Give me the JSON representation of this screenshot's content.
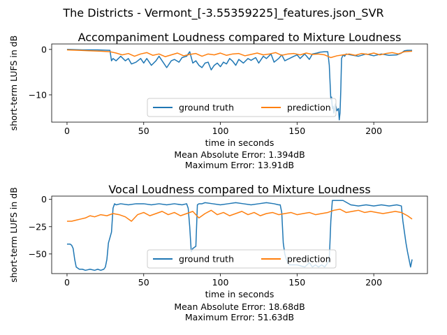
{
  "figure": {
    "suptitle": "The Districts - Vermont_[-3.55359225]_features.json_SVR"
  },
  "chart_data": [
    {
      "type": "line",
      "title": "Accompaniment Loudness compared to Mixture Loudness",
      "xlabel": "time in seconds",
      "ylabel": "short-term LUFS in dB",
      "xlim": [
        -10,
        235
      ],
      "ylim": [
        -16,
        1.2
      ],
      "xticks": [
        0,
        50,
        100,
        150,
        200
      ],
      "yticks": [
        0,
        -10
      ],
      "grid": false,
      "legend": {
        "placement": "lower center",
        "ncol": 2
      },
      "stats": [
        "Mean Absolute Error: 1.394dB",
        "Maximum Error: 13.91dB"
      ],
      "series": [
        {
          "name": "ground truth",
          "color": "#1f77b4",
          "x": [
            0,
            10,
            20,
            28,
            29,
            30,
            32,
            35,
            38,
            40,
            42,
            45,
            48,
            50,
            52,
            55,
            58,
            60,
            63,
            65,
            68,
            70,
            73,
            75,
            78,
            80,
            82,
            84,
            86,
            88,
            90,
            92,
            94,
            96,
            98,
            100,
            102,
            104,
            106,
            108,
            110,
            112,
            115,
            118,
            120,
            123,
            125,
            128,
            130,
            133,
            135,
            138,
            140,
            142,
            145,
            148,
            150,
            152,
            155,
            158,
            160,
            163,
            165,
            168,
            170,
            171,
            172,
            172.5,
            173,
            173.5,
            174,
            175,
            176,
            177,
            177.5,
            178,
            178.5,
            179,
            180,
            181,
            182,
            185,
            190,
            195,
            200,
            205,
            210,
            215,
            218,
            220,
            222,
            225
          ],
          "y": [
            0,
            -0.1,
            -0.1,
            -0.2,
            -2.5,
            -2.0,
            -2.5,
            -1.5,
            -2.5,
            -2.0,
            -3.2,
            -2.8,
            -2.0,
            -3.0,
            -2.0,
            -3.5,
            -2.5,
            -1.5,
            -3.0,
            -4.0,
            -2.5,
            -2.2,
            -2.8,
            -1.8,
            -1.5,
            -0.5,
            -3.0,
            -2.5,
            -3.5,
            -4.0,
            -3.0,
            -2.8,
            -4.5,
            -3.5,
            -3.0,
            -3.8,
            -2.8,
            -3.2,
            -2.0,
            -2.6,
            -3.5,
            -2.2,
            -3.0,
            -2.0,
            -2.4,
            -1.8,
            -3.0,
            -1.5,
            -2.0,
            -1.0,
            -2.8,
            -2.0,
            -1.2,
            -2.5,
            -2.0,
            -1.5,
            -1.2,
            -2.0,
            -1.0,
            -2.2,
            -1.0,
            -0.8,
            -0.6,
            -0.5,
            -0.5,
            -3.5,
            -11.0,
            -10.5,
            -13.0,
            -12.5,
            -14.0,
            -12.0,
            -13.5,
            -13.0,
            -15.5,
            -14.0,
            -9.0,
            -2.0,
            -1.2,
            -1.5,
            -1.0,
            -1.2,
            -1.5,
            -1.0,
            -1.4,
            -1.0,
            -1.3,
            -1.2,
            -0.8,
            -0.3,
            -0.2,
            -0.2
          ]
        },
        {
          "name": "prediction",
          "color": "#ff7f0e",
          "x": [
            0,
            8,
            15,
            22,
            28,
            32,
            36,
            40,
            44,
            48,
            52,
            56,
            60,
            64,
            68,
            72,
            76,
            80,
            84,
            88,
            92,
            96,
            100,
            104,
            108,
            112,
            116,
            120,
            124,
            128,
            132,
            136,
            140,
            144,
            148,
            152,
            156,
            160,
            164,
            168,
            172,
            176,
            180,
            184,
            188,
            192,
            196,
            200,
            204,
            208,
            212,
            216,
            220,
            225
          ],
          "y": [
            -0.1,
            -0.2,
            -0.3,
            -0.4,
            -0.5,
            -0.8,
            -1.2,
            -0.9,
            -1.5,
            -1.0,
            -0.7,
            -1.3,
            -1.0,
            -1.6,
            -1.2,
            -0.8,
            -1.4,
            -1.1,
            -0.9,
            -1.5,
            -1.0,
            -1.2,
            -0.8,
            -1.3,
            -1.0,
            -0.9,
            -1.4,
            -1.1,
            -0.8,
            -1.2,
            -1.0,
            -0.7,
            -1.3,
            -1.0,
            -0.9,
            -1.2,
            -0.8,
            -1.1,
            -1.0,
            -1.2,
            -1.8,
            -1.4,
            -1.2,
            -1.0,
            -1.3,
            -0.9,
            -1.1,
            -0.8,
            -1.2,
            -0.9,
            -0.7,
            -1.0,
            -0.5,
            -0.4
          ]
        }
      ]
    },
    {
      "type": "line",
      "title": "Vocal Loudness compared to Mixture Loudness",
      "xlabel": "time in seconds",
      "ylabel": "short-term LUFS in dB",
      "xlim": [
        -10,
        235
      ],
      "ylim": [
        -68,
        3
      ],
      "xticks": [
        0,
        50,
        100,
        150,
        200
      ],
      "yticks": [
        0,
        -25,
        -50
      ],
      "grid": false,
      "legend": {
        "placement": "lower center",
        "ncol": 2
      },
      "stats": [
        "Mean Absolute Error: 18.68dB",
        "Maximum Error: 51.63dB"
      ],
      "series": [
        {
          "name": "ground truth",
          "color": "#1f77b4",
          "x": [
            0,
            2,
            3,
            4,
            5,
            6,
            8,
            10,
            12,
            15,
            18,
            20,
            22,
            24,
            25,
            26,
            27,
            28,
            29,
            30,
            31,
            32,
            35,
            40,
            45,
            50,
            55,
            60,
            65,
            70,
            75,
            78,
            79,
            80,
            81,
            82,
            83,
            84,
            85,
            86,
            87,
            88,
            90,
            95,
            100,
            105,
            110,
            115,
            120,
            125,
            130,
            135,
            138,
            139,
            140,
            141,
            142,
            143,
            144,
            145,
            150,
            155,
            158,
            160,
            162,
            164,
            165,
            166,
            168,
            170,
            171,
            172,
            173,
            175,
            180,
            185,
            190,
            195,
            200,
            205,
            210,
            215,
            218,
            219,
            220,
            221,
            222,
            224,
            225
          ],
          "y": [
            -41,
            -41,
            -42,
            -45,
            -55,
            -62,
            -64,
            -64,
            -65,
            -64,
            -65,
            -64,
            -65,
            -64,
            -62,
            -55,
            -40,
            -35,
            -30,
            -8,
            -4,
            -5,
            -4,
            -5,
            -4,
            -4,
            -5,
            -4,
            -5,
            -4,
            -5,
            -4,
            -8,
            -25,
            -48,
            -45,
            -44,
            -43,
            -5,
            -4,
            -4,
            -4,
            -3,
            -4,
            -5,
            -4,
            -3,
            -4,
            -5,
            -4,
            -3,
            -4,
            -5,
            -5,
            -12,
            -40,
            -50,
            -55,
            -58,
            -60,
            -60,
            -62,
            -58,
            -62,
            -60,
            -62,
            -61,
            -60,
            -62,
            -58,
            -55,
            -20,
            -1,
            -1,
            -1,
            -5,
            -6,
            -5,
            -6,
            -5,
            -6,
            -5,
            -6,
            -20,
            -30,
            -40,
            -48,
            -62,
            -55
          ]
        },
        {
          "name": "prediction",
          "color": "#ff7f0e",
          "x": [
            0,
            3,
            6,
            9,
            12,
            15,
            18,
            22,
            26,
            30,
            34,
            38,
            42,
            46,
            50,
            54,
            58,
            62,
            66,
            70,
            74,
            78,
            82,
            86,
            90,
            94,
            98,
            102,
            106,
            110,
            114,
            118,
            122,
            126,
            130,
            134,
            138,
            142,
            146,
            150,
            154,
            158,
            162,
            166,
            170,
            174,
            178,
            182,
            186,
            190,
            194,
            198,
            202,
            206,
            210,
            214,
            218,
            222,
            225
          ],
          "y": [
            -20,
            -20,
            -19,
            -18,
            -17,
            -15,
            -16,
            -14,
            -15,
            -13,
            -14,
            -16,
            -20,
            -14,
            -12,
            -15,
            -13,
            -11,
            -14,
            -12,
            -15,
            -13,
            -11,
            -17,
            -13,
            -10,
            -14,
            -12,
            -15,
            -13,
            -11,
            -14,
            -12,
            -15,
            -13,
            -12,
            -14,
            -13,
            -12,
            -14,
            -13,
            -12,
            -14,
            -13,
            -12,
            -10,
            -9,
            -12,
            -11,
            -10,
            -12,
            -11,
            -12,
            -13,
            -12,
            -11,
            -12,
            -15,
            -18
          ]
        }
      ]
    }
  ]
}
